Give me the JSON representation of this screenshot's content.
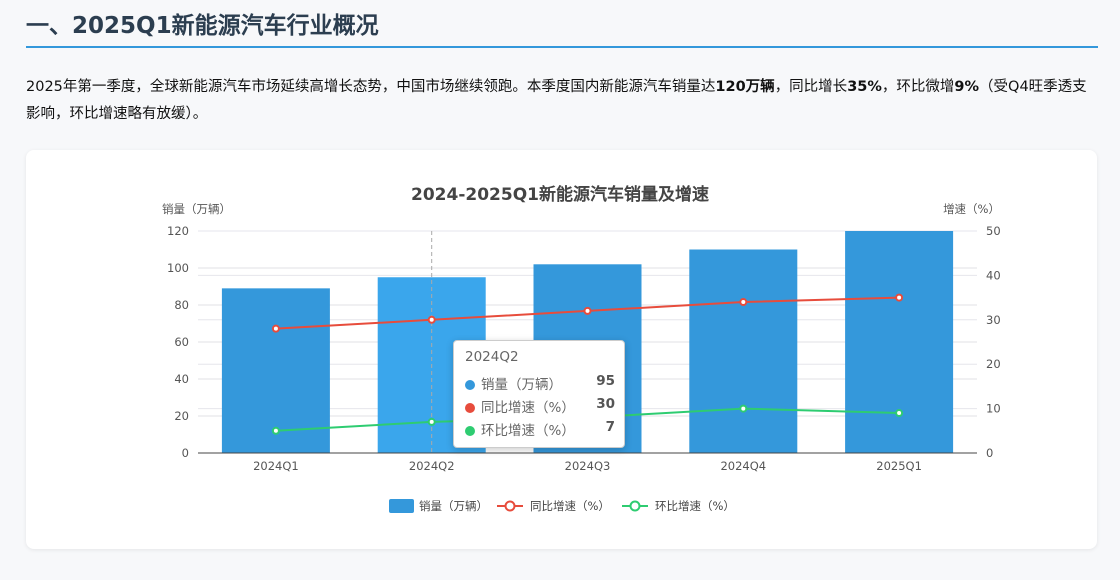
{
  "heading": "一、2025Q1新能源汽车行业概况",
  "paragraph": {
    "p1": "2025年第一季度，全球新能源汽车市场延续高增长态势，中国市场继续领跑。本季度国内新能源汽车销量达",
    "b1": "120万辆",
    "p2": "，同比增长",
    "b2": "35%",
    "p3": "，环比微增",
    "b3": "9%",
    "p4": "（受Q4旺季透支影响，环比增速略有放缓）。"
  },
  "colors": {
    "bar": "#3498db",
    "bar_highlight": "#3aa6ec",
    "yoy": "#e74c3c",
    "qoq": "#2ecc71"
  },
  "tooltip": {
    "title": "2024Q2",
    "rows": [
      {
        "label": "销量（万辆）",
        "value": "95"
      },
      {
        "label": "同比增速（%）",
        "value": "30"
      },
      {
        "label": "环比增速（%）",
        "value": "7"
      }
    ]
  },
  "chart_data": {
    "type": "bar",
    "title": "2024-2025Q1新能源汽车销量及增速",
    "categories": [
      "2024Q1",
      "2024Q2",
      "2024Q3",
      "2024Q4",
      "2025Q1"
    ],
    "ylabel": "销量（万辆）",
    "ylabel_right": "增速（%）",
    "ylim": [
      0,
      120
    ],
    "ylim_right": [
      0,
      50
    ],
    "yticks": [
      0,
      20,
      40,
      60,
      80,
      100,
      120
    ],
    "yticks_right": [
      0,
      10,
      20,
      30,
      40,
      50
    ],
    "series": [
      {
        "name": "销量（万辆）",
        "type": "bar",
        "axis": "left",
        "values": [
          89,
          95,
          102,
          110,
          120
        ]
      },
      {
        "name": "同比增速（%）",
        "type": "line",
        "axis": "right",
        "values": [
          28,
          30,
          32,
          34,
          35
        ]
      },
      {
        "name": "环比增速（%）",
        "type": "line",
        "axis": "right",
        "values": [
          5,
          7,
          8,
          10,
          9
        ]
      }
    ],
    "legend": "bottom-center",
    "grid": true,
    "highlighted": "2024Q2"
  }
}
